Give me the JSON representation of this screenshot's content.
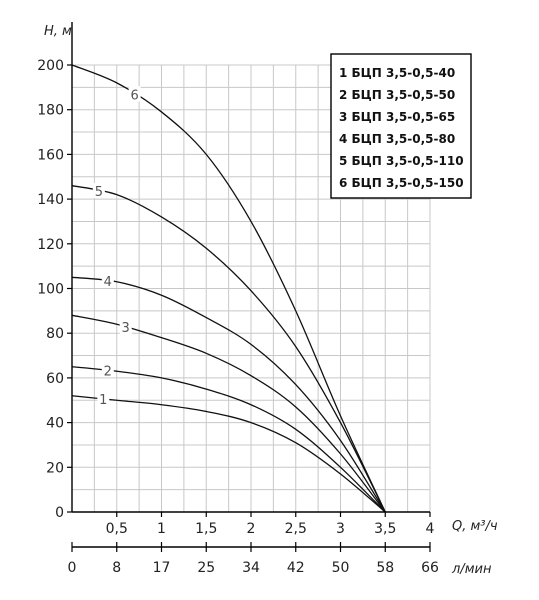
{
  "chart_data": {
    "type": "line",
    "xlabel": "Q, м³/ч",
    "ylabel": "H, м",
    "xlabel2": "л/мин",
    "xlim": [
      0,
      4
    ],
    "ylim": [
      0,
      200
    ],
    "x_ticks": [
      {
        "v": 0.5,
        "label": "0,5"
      },
      {
        "v": 1,
        "label": "1"
      },
      {
        "v": 1.5,
        "label": "1,5"
      },
      {
        "v": 2,
        "label": "2"
      },
      {
        "v": 2.5,
        "label": "2,5"
      },
      {
        "v": 3,
        "label": "3"
      },
      {
        "v": 3.5,
        "label": "3,5"
      },
      {
        "v": 4,
        "label": "4"
      }
    ],
    "y_ticks": [
      0,
      20,
      40,
      60,
      80,
      100,
      120,
      140,
      160,
      180,
      200
    ],
    "x2_ticks": [
      {
        "v": 0,
        "label": "0"
      },
      {
        "v": 0.5,
        "label": "8"
      },
      {
        "v": 1,
        "label": "17"
      },
      {
        "v": 1.5,
        "label": "25"
      },
      {
        "v": 2,
        "label": "34"
      },
      {
        "v": 2.5,
        "label": "42"
      },
      {
        "v": 3,
        "label": "50"
      },
      {
        "v": 3.5,
        "label": "58"
      },
      {
        "v": 4,
        "label": "66"
      }
    ],
    "grid": true,
    "legend_position": "top-right",
    "series": [
      {
        "label": "1",
        "name": "БЦП 3,5-0,5-40",
        "points": [
          [
            0,
            52
          ],
          [
            0.5,
            50
          ],
          [
            1,
            48
          ],
          [
            1.5,
            45
          ],
          [
            2,
            40
          ],
          [
            2.5,
            31
          ],
          [
            3,
            17
          ],
          [
            3.5,
            0
          ]
        ]
      },
      {
        "label": "2",
        "name": "БЦП 3,5-0,5-50",
        "points": [
          [
            0,
            65
          ],
          [
            0.5,
            63
          ],
          [
            1,
            60
          ],
          [
            1.5,
            55
          ],
          [
            2,
            48
          ],
          [
            2.5,
            37
          ],
          [
            3,
            20
          ],
          [
            3.5,
            0
          ]
        ]
      },
      {
        "label": "3",
        "name": "БЦП 3,5-0,5-65",
        "points": [
          [
            0,
            88
          ],
          [
            0.5,
            84
          ],
          [
            1,
            78
          ],
          [
            1.5,
            71
          ],
          [
            2,
            61
          ],
          [
            2.5,
            47
          ],
          [
            3,
            26
          ],
          [
            3.5,
            0
          ]
        ]
      },
      {
        "label": "4",
        "name": "БЦП 3,5-0,5-80",
        "points": [
          [
            0,
            105
          ],
          [
            0.5,
            103
          ],
          [
            1,
            97
          ],
          [
            1.5,
            87
          ],
          [
            2,
            75
          ],
          [
            2.5,
            57
          ],
          [
            3,
            32
          ],
          [
            3.5,
            0
          ]
        ]
      },
      {
        "label": "5",
        "name": "БЦП 3,5-0,5-110",
        "points": [
          [
            0,
            146
          ],
          [
            0.5,
            142
          ],
          [
            1,
            132
          ],
          [
            1.5,
            118
          ],
          [
            2,
            99
          ],
          [
            2.5,
            74
          ],
          [
            3,
            40
          ],
          [
            3.5,
            0
          ]
        ]
      },
      {
        "label": "6",
        "name": "БЦП 3,5-0,5-150",
        "points": [
          [
            0,
            200
          ],
          [
            0.5,
            192
          ],
          [
            1,
            179
          ],
          [
            1.5,
            160
          ],
          [
            2,
            130
          ],
          [
            2.5,
            90
          ],
          [
            3,
            43
          ],
          [
            3.5,
            0
          ]
        ]
      }
    ],
    "curve_label_x": [
      0.35,
      0.4,
      0.6,
      0.4,
      0.3,
      0.7
    ]
  }
}
